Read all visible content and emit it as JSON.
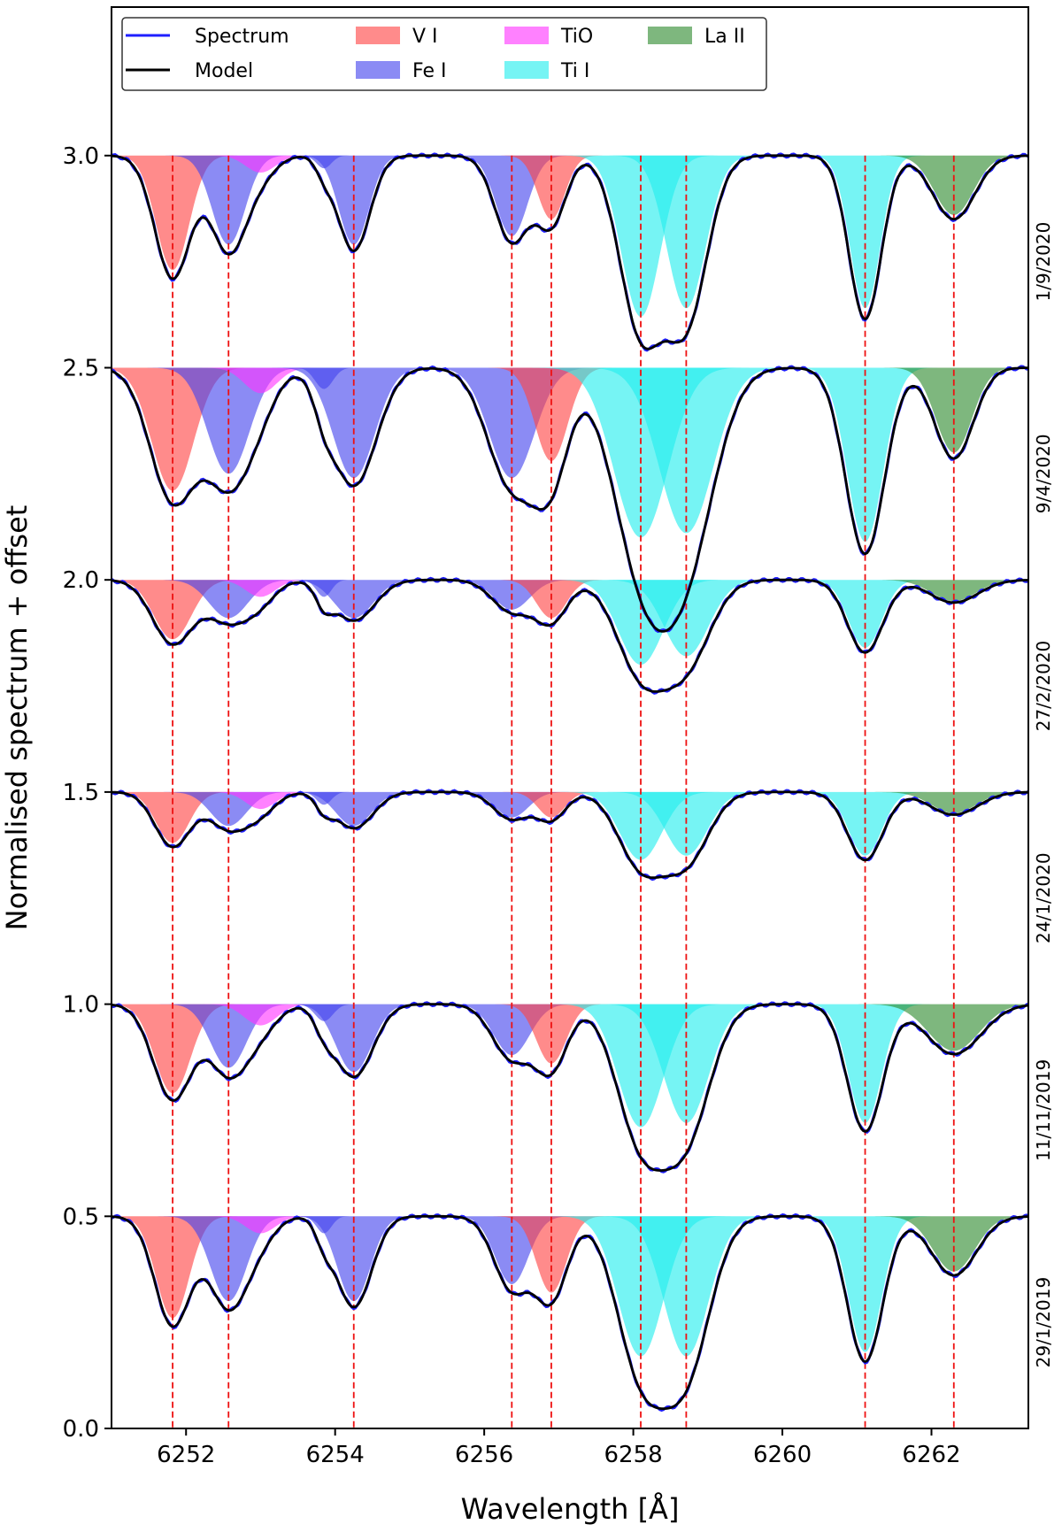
{
  "chart_data": {
    "type": "line",
    "xlabel": "Wavelength [Å]",
    "ylabel": "Normalised spectrum + offset",
    "xlim": [
      6251.0,
      6263.3
    ],
    "ylim": [
      0.0,
      3.35
    ],
    "x_ticks": [
      6252,
      6254,
      6256,
      6258,
      6260,
      6262
    ],
    "y_ticks": [
      0.0,
      0.5,
      1.0,
      1.5,
      2.0,
      2.5,
      3.0
    ],
    "line_markers": [
      6251.82,
      6252.57,
      6254.25,
      6256.37,
      6256.9,
      6258.1,
      6258.71,
      6261.11,
      6262.3
    ],
    "legend": [
      {
        "label": "Spectrum",
        "kind": "line",
        "color": "#1f1fff"
      },
      {
        "label": "Model",
        "kind": "line",
        "color": "#000000"
      },
      {
        "label": "V I",
        "kind": "fill",
        "color": "#ff4444"
      },
      {
        "label": "Fe I",
        "kind": "fill",
        "color": "#4444ee"
      },
      {
        "label": "TiO",
        "kind": "fill",
        "color": "#ff33ff"
      },
      {
        "label": "Ti I",
        "kind": "fill",
        "color": "#22eeee"
      },
      {
        "label": "La II",
        "kind": "fill",
        "color": "#2e8b2e"
      }
    ],
    "species_colors": {
      "V I": "#ff4444",
      "Fe I": "#4444ee",
      "TiO": "#ff33ff",
      "Ti I": "#22eeee",
      "La II": "#2e8b2e"
    },
    "epochs": [
      {
        "date": "1/9/2020",
        "offset": 3.0,
        "lines": [
          {
            "species": "V I",
            "center": 6251.82,
            "depth": 0.27,
            "width": 0.22
          },
          {
            "species": "Fe I",
            "center": 6252.57,
            "depth": 0.21,
            "width": 0.22
          },
          {
            "species": "TiO",
            "center": 6253.0,
            "depth": 0.04,
            "width": 0.2
          },
          {
            "species": "Fe I",
            "center": 6253.85,
            "depth": 0.03,
            "width": 0.1
          },
          {
            "species": "Fe I",
            "center": 6254.25,
            "depth": 0.21,
            "width": 0.2
          },
          {
            "species": "Fe I",
            "center": 6256.37,
            "depth": 0.19,
            "width": 0.21
          },
          {
            "species": "V I",
            "center": 6256.9,
            "depth": 0.15,
            "width": 0.18
          },
          {
            "species": "Ti I",
            "center": 6258.1,
            "depth": 0.38,
            "width": 0.26
          },
          {
            "species": "Ti I",
            "center": 6258.71,
            "depth": 0.36,
            "width": 0.26
          },
          {
            "species": "Ti I",
            "center": 6261.11,
            "depth": 0.36,
            "width": 0.2
          },
          {
            "species": "La II",
            "center": 6262.3,
            "depth": 0.14,
            "width": 0.26
          }
        ]
      },
      {
        "date": "9/4/2020",
        "offset": 2.5,
        "lines": [
          {
            "species": "V I",
            "center": 6251.82,
            "depth": 0.29,
            "width": 0.28
          },
          {
            "species": "Fe I",
            "center": 6252.57,
            "depth": 0.25,
            "width": 0.28
          },
          {
            "species": "TiO",
            "center": 6253.0,
            "depth": 0.06,
            "width": 0.22
          },
          {
            "species": "Fe I",
            "center": 6253.85,
            "depth": 0.05,
            "width": 0.12
          },
          {
            "species": "Fe I",
            "center": 6254.25,
            "depth": 0.26,
            "width": 0.28
          },
          {
            "species": "Fe I",
            "center": 6256.37,
            "depth": 0.26,
            "width": 0.3
          },
          {
            "species": "V I",
            "center": 6256.9,
            "depth": 0.22,
            "width": 0.22
          },
          {
            "species": "Ti I",
            "center": 6258.1,
            "depth": 0.4,
            "width": 0.36
          },
          {
            "species": "Ti I",
            "center": 6258.71,
            "depth": 0.39,
            "width": 0.36
          },
          {
            "species": "Ti I",
            "center": 6261.11,
            "depth": 0.41,
            "width": 0.24
          },
          {
            "species": "La II",
            "center": 6262.3,
            "depth": 0.2,
            "width": 0.24
          }
        ]
      },
      {
        "date": "27/2/2020",
        "offset": 2.0,
        "lines": [
          {
            "species": "V I",
            "center": 6251.82,
            "depth": 0.14,
            "width": 0.25
          },
          {
            "species": "Fe I",
            "center": 6252.57,
            "depth": 0.09,
            "width": 0.26
          },
          {
            "species": "TiO",
            "center": 6253.0,
            "depth": 0.04,
            "width": 0.2
          },
          {
            "species": "Fe I",
            "center": 6253.85,
            "depth": 0.04,
            "width": 0.1
          },
          {
            "species": "Fe I",
            "center": 6254.25,
            "depth": 0.09,
            "width": 0.26
          },
          {
            "species": "Fe I",
            "center": 6256.37,
            "depth": 0.07,
            "width": 0.24
          },
          {
            "species": "V I",
            "center": 6256.9,
            "depth": 0.09,
            "width": 0.2
          },
          {
            "species": "Ti I",
            "center": 6258.1,
            "depth": 0.2,
            "width": 0.3
          },
          {
            "species": "Ti I",
            "center": 6258.71,
            "depth": 0.18,
            "width": 0.3
          },
          {
            "species": "Ti I",
            "center": 6261.11,
            "depth": 0.16,
            "width": 0.22
          },
          {
            "species": "La II",
            "center": 6262.3,
            "depth": 0.05,
            "width": 0.3
          }
        ]
      },
      {
        "date": "24/1/2020",
        "offset": 1.5,
        "lines": [
          {
            "species": "V I",
            "center": 6251.82,
            "depth": 0.12,
            "width": 0.22
          },
          {
            "species": "Fe I",
            "center": 6252.57,
            "depth": 0.08,
            "width": 0.24
          },
          {
            "species": "TiO",
            "center": 6253.0,
            "depth": 0.04,
            "width": 0.2
          },
          {
            "species": "Fe I",
            "center": 6253.85,
            "depth": 0.03,
            "width": 0.1
          },
          {
            "species": "Fe I",
            "center": 6254.25,
            "depth": 0.08,
            "width": 0.24
          },
          {
            "species": "Fe I",
            "center": 6256.37,
            "depth": 0.06,
            "width": 0.22
          },
          {
            "species": "V I",
            "center": 6256.9,
            "depth": 0.06,
            "width": 0.18
          },
          {
            "species": "Ti I",
            "center": 6258.1,
            "depth": 0.16,
            "width": 0.28
          },
          {
            "species": "Ti I",
            "center": 6258.71,
            "depth": 0.15,
            "width": 0.28
          },
          {
            "species": "Ti I",
            "center": 6261.11,
            "depth": 0.15,
            "width": 0.22
          },
          {
            "species": "La II",
            "center": 6262.3,
            "depth": 0.05,
            "width": 0.3
          }
        ]
      },
      {
        "date": "11/11/2019",
        "offset": 1.0,
        "lines": [
          {
            "species": "V I",
            "center": 6251.82,
            "depth": 0.21,
            "width": 0.24
          },
          {
            "species": "Fe I",
            "center": 6252.57,
            "depth": 0.15,
            "width": 0.24
          },
          {
            "species": "TiO",
            "center": 6253.0,
            "depth": 0.05,
            "width": 0.22
          },
          {
            "species": "Fe I",
            "center": 6253.85,
            "depth": 0.04,
            "width": 0.12
          },
          {
            "species": "Fe I",
            "center": 6254.25,
            "depth": 0.16,
            "width": 0.24
          },
          {
            "species": "Fe I",
            "center": 6256.37,
            "depth": 0.12,
            "width": 0.24
          },
          {
            "species": "V I",
            "center": 6256.9,
            "depth": 0.14,
            "width": 0.2
          },
          {
            "species": "Ti I",
            "center": 6258.1,
            "depth": 0.29,
            "width": 0.3
          },
          {
            "species": "Ti I",
            "center": 6258.71,
            "depth": 0.28,
            "width": 0.3
          },
          {
            "species": "Ti I",
            "center": 6261.11,
            "depth": 0.28,
            "width": 0.22
          },
          {
            "species": "La II",
            "center": 6262.3,
            "depth": 0.11,
            "width": 0.34
          }
        ]
      },
      {
        "date": "29/1/2019",
        "offset": 0.5,
        "lines": [
          {
            "species": "V I",
            "center": 6251.82,
            "depth": 0.24,
            "width": 0.22
          },
          {
            "species": "Fe I",
            "center": 6252.57,
            "depth": 0.2,
            "width": 0.24
          },
          {
            "species": "TiO",
            "center": 6253.0,
            "depth": 0.04,
            "width": 0.2
          },
          {
            "species": "Fe I",
            "center": 6253.85,
            "depth": 0.04,
            "width": 0.1
          },
          {
            "species": "Fe I",
            "center": 6254.25,
            "depth": 0.2,
            "width": 0.22
          },
          {
            "species": "Fe I",
            "center": 6256.37,
            "depth": 0.16,
            "width": 0.22
          },
          {
            "species": "V I",
            "center": 6256.9,
            "depth": 0.18,
            "width": 0.2
          },
          {
            "species": "Ti I",
            "center": 6258.1,
            "depth": 0.33,
            "width": 0.3
          },
          {
            "species": "Ti I",
            "center": 6258.71,
            "depth": 0.33,
            "width": 0.3
          },
          {
            "species": "Ti I",
            "center": 6261.11,
            "depth": 0.32,
            "width": 0.22
          },
          {
            "species": "La II",
            "center": 6262.3,
            "depth": 0.13,
            "width": 0.28
          }
        ]
      }
    ]
  }
}
